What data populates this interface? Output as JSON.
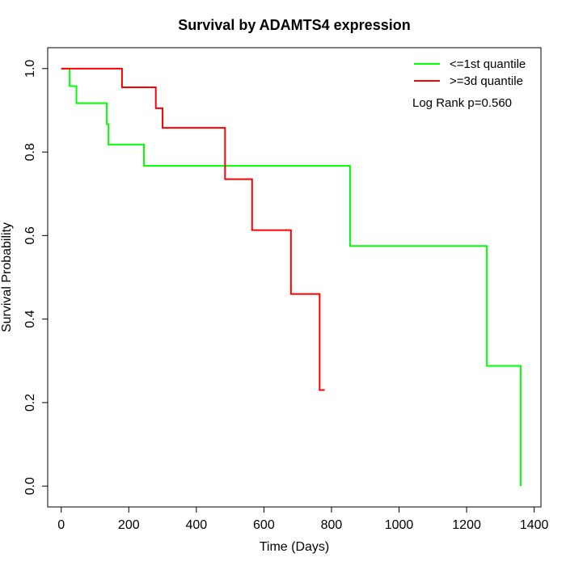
{
  "chart_data": {
    "type": "line",
    "title": "Survival by ADAMTS4 expression",
    "xlabel": "Time (Days)",
    "ylabel": "Survival Probability",
    "xlim": [
      -40,
      1420
    ],
    "ylim": [
      -0.05,
      1.05
    ],
    "x_ticks": [
      0,
      200,
      400,
      600,
      800,
      1000,
      1200,
      1400
    ],
    "x_tick_labels": [
      "0",
      "200",
      "400",
      "600",
      "800",
      "1000",
      "1200",
      "1400"
    ],
    "y_ticks": [
      0.0,
      0.2,
      0.4,
      0.6,
      0.8,
      1.0
    ],
    "y_tick_labels": [
      "0.0",
      "0.2",
      "0.4",
      "0.6",
      "0.8",
      "1.0"
    ],
    "grid": false,
    "legend_position": "top-right",
    "annotation": "Log Rank p=0.560",
    "series": [
      {
        "name": "<=1st quantile",
        "color": "#00ff00",
        "step": true,
        "x": [
          0,
          25,
          45,
          135,
          140,
          245,
          855,
          1260,
          1360,
          1360
        ],
        "y": [
          1.0,
          0.958,
          0.917,
          0.867,
          0.818,
          0.767,
          0.575,
          0.288,
          0.288,
          0.0
        ]
      },
      {
        "name": ">=3d quantile",
        "color": "#ff0000",
        "step": true,
        "x": [
          0,
          180,
          280,
          300,
          485,
          565,
          680,
          765,
          780
        ],
        "y": [
          1.0,
          0.955,
          0.905,
          0.858,
          0.735,
          0.613,
          0.46,
          0.23,
          0.23
        ]
      }
    ]
  }
}
